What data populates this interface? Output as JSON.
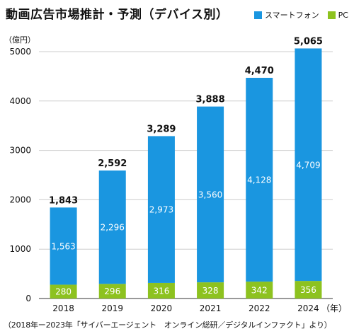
{
  "chart_data": {
    "type": "bar",
    "stacked": true,
    "title": "動画広告市場推計・予測（デバイス別）",
    "ylabel": "（億円）",
    "xlabel": "（年）",
    "categories": [
      "2018",
      "2019",
      "2020",
      "2021",
      "2022",
      "2024"
    ],
    "series": [
      {
        "name": "PC",
        "values": [
          280,
          296,
          316,
          328,
          342,
          356
        ]
      },
      {
        "name": "スマートフォン",
        "values": [
          1563,
          2296,
          2973,
          3560,
          4128,
          4709
        ]
      }
    ],
    "totals": [
      "1,843",
      "2,592",
      "3,289",
      "3,888",
      "4,470",
      "5,065"
    ],
    "pc_labels": [
      "280",
      "296",
      "316",
      "328",
      "342",
      "356"
    ],
    "sp_labels": [
      "1,563",
      "2,296",
      "2,973",
      "3,560",
      "4,128",
      "4,709"
    ],
    "y_ticks": [
      "0",
      "1000",
      "2000",
      "3000",
      "4000",
      "5000"
    ],
    "ylim": [
      0,
      5000
    ],
    "grid": true,
    "legend_position": "top-right",
    "colors": {
      "smartphone": "#1a96e0",
      "pc": "#8dc21f",
      "grid": "#cccccc"
    },
    "source": "（2018年ー2023年「サイバーエージェント　オンライン総研／デジタルインファクト」より）"
  }
}
